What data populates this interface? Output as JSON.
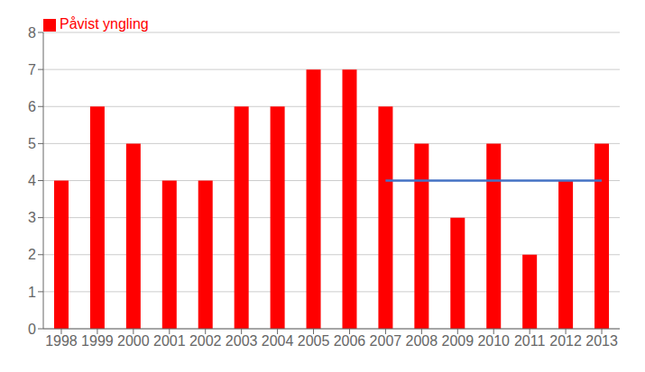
{
  "chart_data": {
    "type": "bar",
    "categories": [
      "1998",
      "1999",
      "2000",
      "2001",
      "2002",
      "2003",
      "2004",
      "2005",
      "2006",
      "2007",
      "2008",
      "2009",
      "2010",
      "2011",
      "2012",
      "2013"
    ],
    "series": [
      {
        "name": "Påvist yngling",
        "color": "#ff0000",
        "values": [
          4,
          6,
          5,
          4,
          4,
          6,
          6,
          7,
          7,
          6,
          5,
          3,
          5,
          2,
          4,
          5
        ]
      },
      {
        "type": "line",
        "color": "#4472c4",
        "values": [
          null,
          null,
          null,
          null,
          null,
          null,
          null,
          null,
          null,
          4,
          4,
          4,
          4,
          4,
          4,
          4
        ]
      }
    ],
    "ylim": [
      0,
      8
    ],
    "yticks": [
      0,
      1,
      2,
      3,
      4,
      5,
      6,
      7,
      8
    ],
    "grid": true,
    "legend": "upper left"
  }
}
